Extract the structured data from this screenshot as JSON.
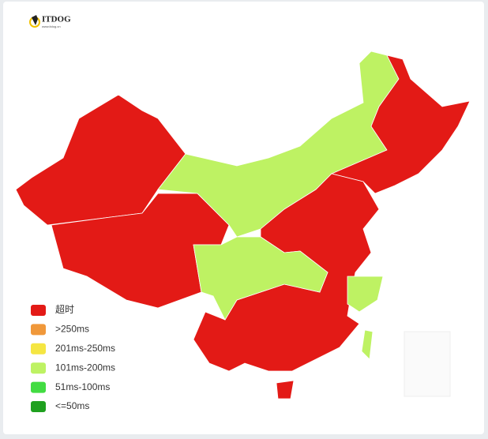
{
  "logo": {
    "title": "ITDOG",
    "subtitle": "www.itdog.cn"
  },
  "legend": {
    "items": [
      {
        "label": "超时",
        "color": "#e31a16"
      },
      {
        "label": ">250ms",
        "color": "#f0983a"
      },
      {
        "label": "201ms-250ms",
        "color": "#f5e642"
      },
      {
        "label": "101ms-200ms",
        "color": "#bef263"
      },
      {
        "label": "51ms-100ms",
        "color": "#42dc42"
      },
      {
        "label": "<=50ms",
        "color": "#1fa01f"
      }
    ]
  }
}
